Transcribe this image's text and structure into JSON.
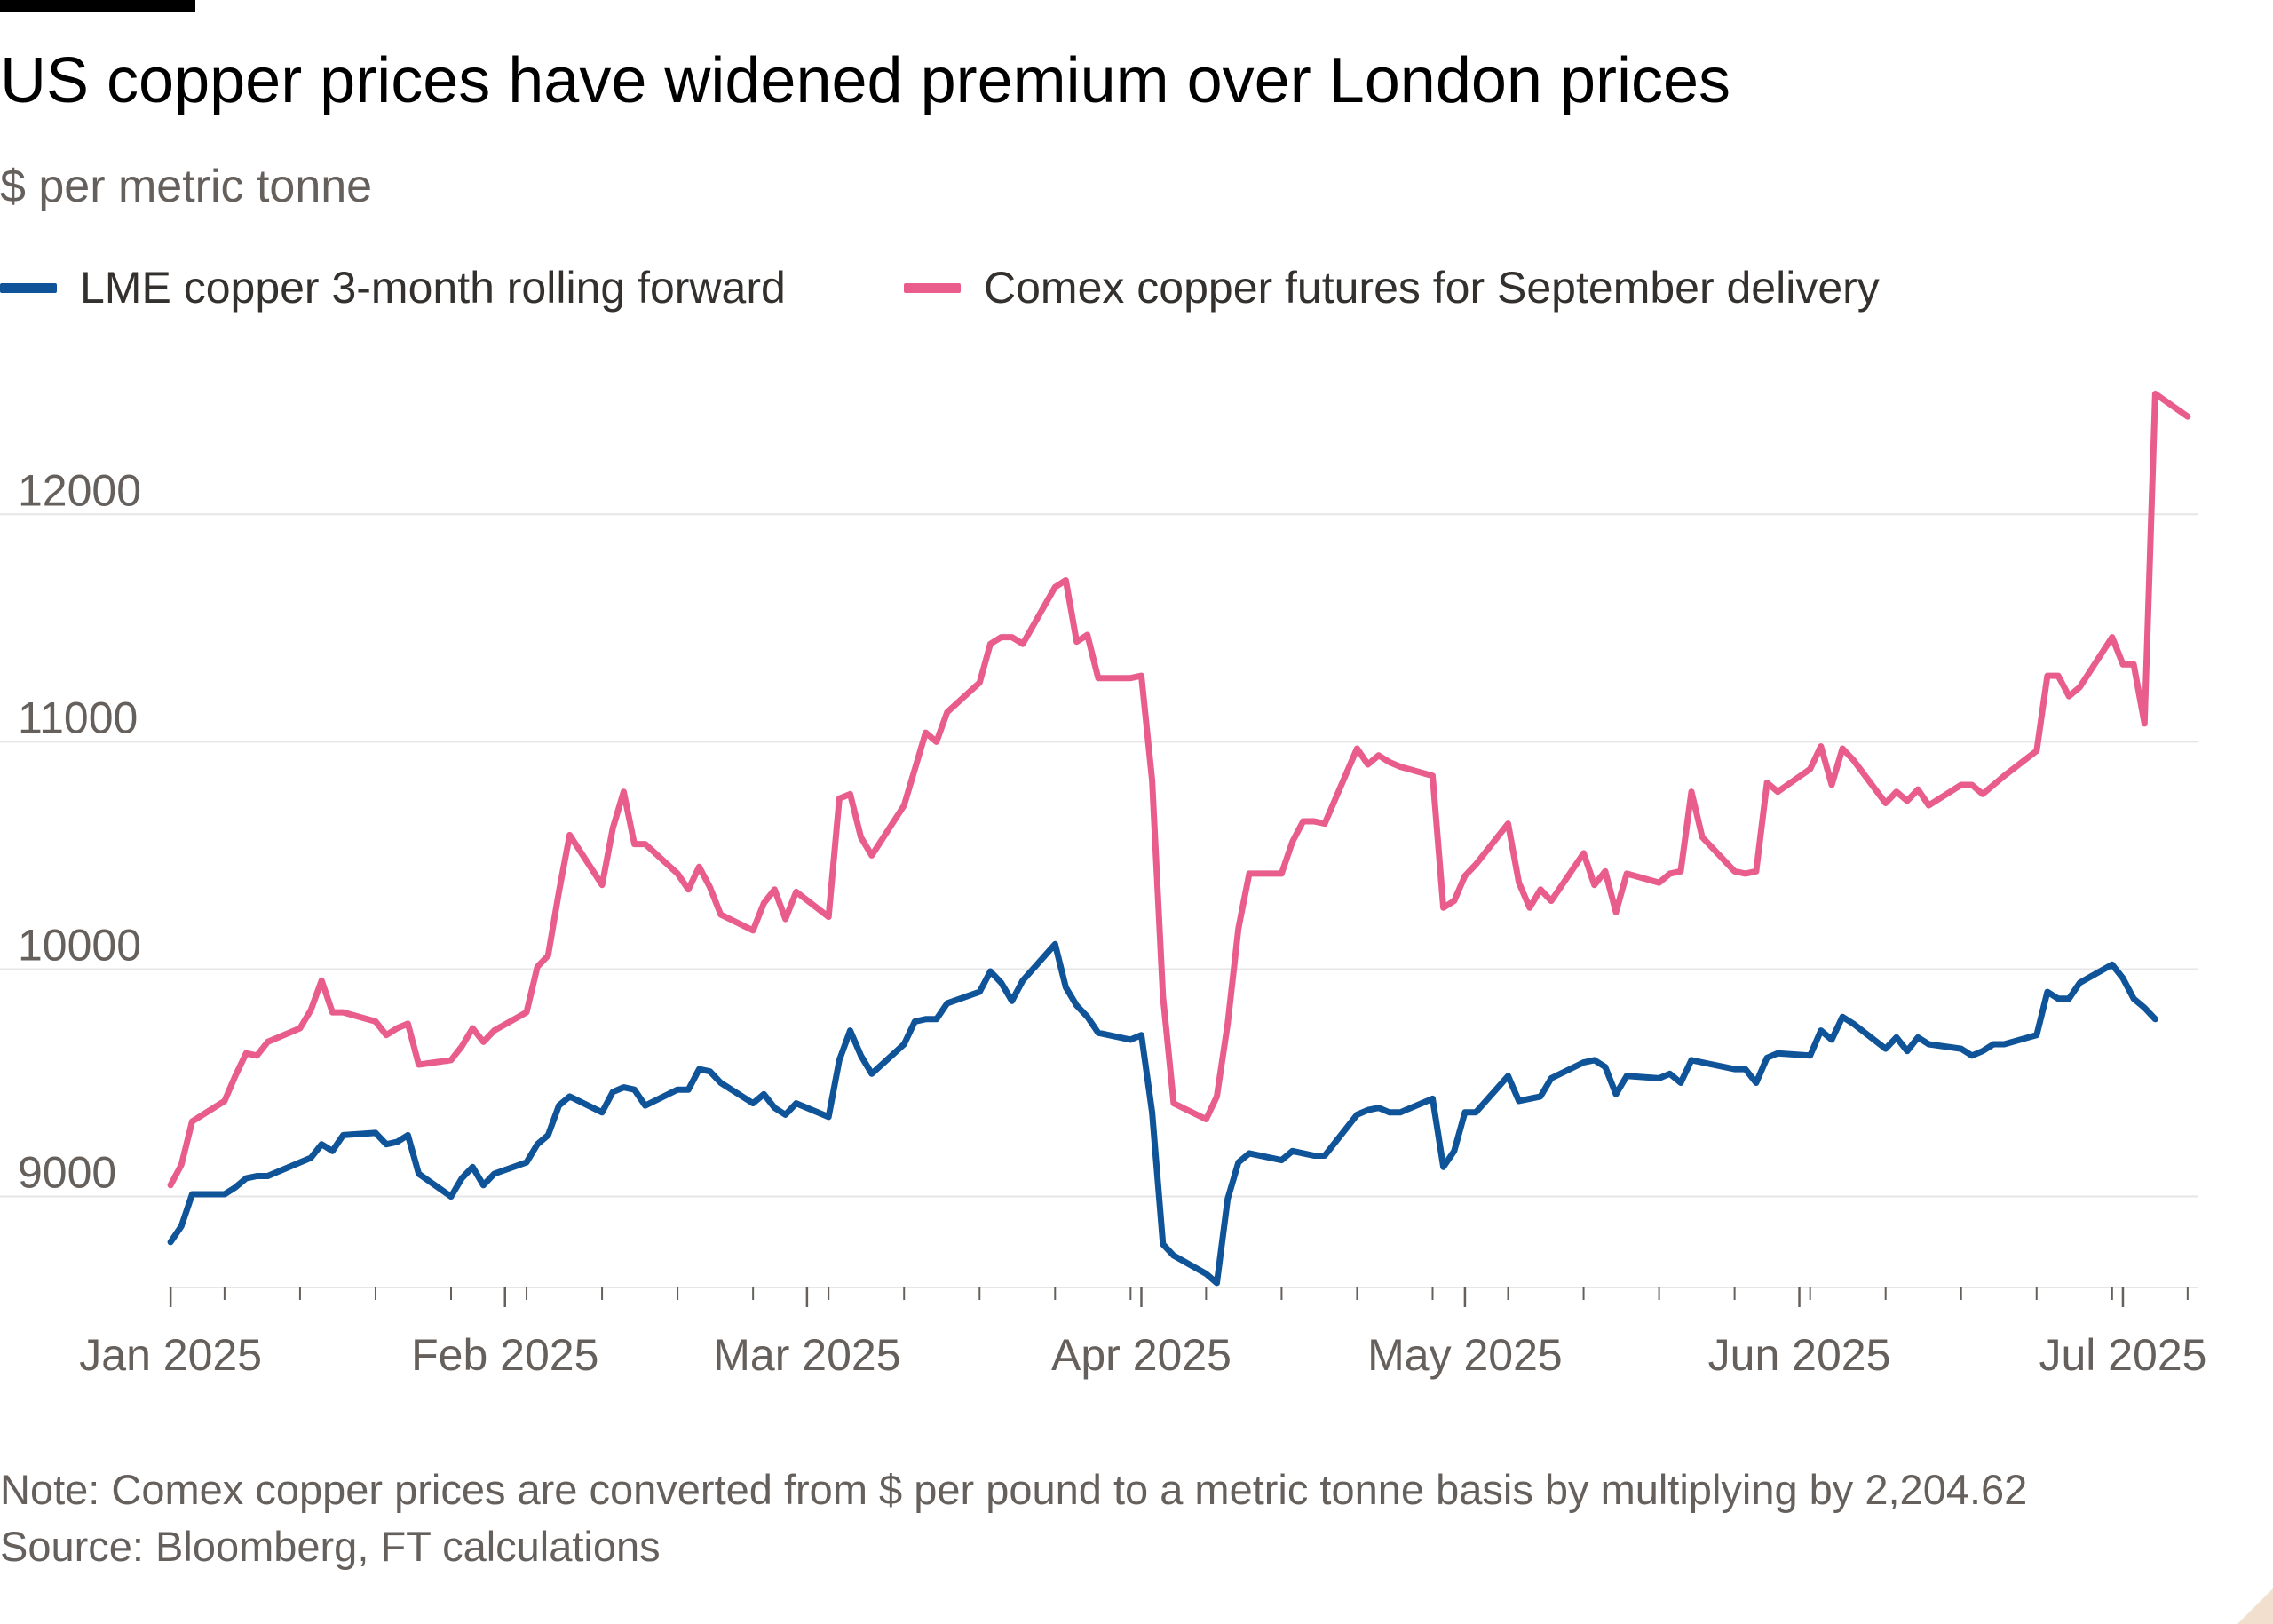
{
  "title": "US copper prices have widened premium over London prices",
  "subtitle": "$ per metric tonne",
  "footer": {
    "note": "Note: Comex copper prices are converted from $ per pound to a metric tonne basis by multiplying by 2,204.62",
    "source": "Source: Bloomberg, FT calculations"
  },
  "colors": {
    "lme": "#0f5499",
    "comex": "#e95d8c",
    "grid": "#e6e6e6",
    "axis": "#66605c"
  },
  "chart_data": {
    "type": "line",
    "x_axis": {
      "ticks": [
        {
          "date": "2025-01-01",
          "label": "Jan 2025"
        },
        {
          "date": "2025-02-01",
          "label": "Feb 2025"
        },
        {
          "date": "2025-03-01",
          "label": "Mar 2025"
        },
        {
          "date": "2025-04-01",
          "label": "Apr 2025"
        },
        {
          "date": "2025-05-01",
          "label": "May 2025"
        },
        {
          "date": "2025-06-01",
          "label": "Jun 2025"
        },
        {
          "date": "2025-07-01",
          "label": "Jul 2025"
        }
      ],
      "range": [
        "2024-12-31",
        "2025-07-08"
      ]
    },
    "y_axis": {
      "ticks": [
        9000,
        10000,
        11000,
        12000
      ],
      "range": [
        8600,
        12700
      ]
    },
    "grid": true,
    "legend_position": "top-left",
    "series": [
      {
        "name": "LME copper 3-month rolling forward",
        "color_key": "lme",
        "points": [
          [
            "2025-01-01",
            8800
          ],
          [
            "2025-01-02",
            8870
          ],
          [
            "2025-01-03",
            9010
          ],
          [
            "2025-01-06",
            9010
          ],
          [
            "2025-01-07",
            9040
          ],
          [
            "2025-01-08",
            9080
          ],
          [
            "2025-01-09",
            9090
          ],
          [
            "2025-01-10",
            9090
          ],
          [
            "2025-01-13",
            9150
          ],
          [
            "2025-01-14",
            9170
          ],
          [
            "2025-01-15",
            9230
          ],
          [
            "2025-01-16",
            9200
          ],
          [
            "2025-01-17",
            9270
          ],
          [
            "2025-01-20",
            9280
          ],
          [
            "2025-01-21",
            9230
          ],
          [
            "2025-01-22",
            9240
          ],
          [
            "2025-01-23",
            9270
          ],
          [
            "2025-01-24",
            9100
          ],
          [
            "2025-01-27",
            9000
          ],
          [
            "2025-01-28",
            9080
          ],
          [
            "2025-01-29",
            9130
          ],
          [
            "2025-01-30",
            9050
          ],
          [
            "2025-01-31",
            9100
          ],
          [
            "2025-02-03",
            9150
          ],
          [
            "2025-02-04",
            9230
          ],
          [
            "2025-02-05",
            9270
          ],
          [
            "2025-02-06",
            9400
          ],
          [
            "2025-02-07",
            9440
          ],
          [
            "2025-02-10",
            9370
          ],
          [
            "2025-02-11",
            9460
          ],
          [
            "2025-02-12",
            9480
          ],
          [
            "2025-02-13",
            9470
          ],
          [
            "2025-02-14",
            9400
          ],
          [
            "2025-02-17",
            9470
          ],
          [
            "2025-02-18",
            9470
          ],
          [
            "2025-02-19",
            9560
          ],
          [
            "2025-02-20",
            9550
          ],
          [
            "2025-02-21",
            9500
          ],
          [
            "2025-02-24",
            9410
          ],
          [
            "2025-02-25",
            9450
          ],
          [
            "2025-02-26",
            9390
          ],
          [
            "2025-02-27",
            9360
          ],
          [
            "2025-02-28",
            9410
          ],
          [
            "2025-03-03",
            9350
          ],
          [
            "2025-03-04",
            9600
          ],
          [
            "2025-03-05",
            9730
          ],
          [
            "2025-03-06",
            9620
          ],
          [
            "2025-03-07",
            9540
          ],
          [
            "2025-03-10",
            9670
          ],
          [
            "2025-03-11",
            9770
          ],
          [
            "2025-03-12",
            9780
          ],
          [
            "2025-03-13",
            9780
          ],
          [
            "2025-03-14",
            9850
          ],
          [
            "2025-03-17",
            9900
          ],
          [
            "2025-03-18",
            9990
          ],
          [
            "2025-03-19",
            9940
          ],
          [
            "2025-03-20",
            9860
          ],
          [
            "2025-03-21",
            9950
          ],
          [
            "2025-03-24",
            10110
          ],
          [
            "2025-03-25",
            9920
          ],
          [
            "2025-03-26",
            9840
          ],
          [
            "2025-03-27",
            9790
          ],
          [
            "2025-03-28",
            9720
          ],
          [
            "2025-03-31",
            9690
          ],
          [
            "2025-04-01",
            9710
          ],
          [
            "2025-04-02",
            9370
          ],
          [
            "2025-04-03",
            8790
          ],
          [
            "2025-04-04",
            8740
          ],
          [
            "2025-04-07",
            8660
          ],
          [
            "2025-04-08",
            8620
          ],
          [
            "2025-04-09",
            8990
          ],
          [
            "2025-04-10",
            9150
          ],
          [
            "2025-04-11",
            9190
          ],
          [
            "2025-04-14",
            9160
          ],
          [
            "2025-04-15",
            9200
          ],
          [
            "2025-04-16",
            9190
          ],
          [
            "2025-04-17",
            9180
          ],
          [
            "2025-04-18",
            9180
          ],
          [
            "2025-04-21",
            9360
          ],
          [
            "2025-04-22",
            9380
          ],
          [
            "2025-04-23",
            9390
          ],
          [
            "2025-04-24",
            9370
          ],
          [
            "2025-04-25",
            9370
          ],
          [
            "2025-04-28",
            9430
          ],
          [
            "2025-04-29",
            9130
          ],
          [
            "2025-04-30",
            9200
          ],
          [
            "2025-05-01",
            9370
          ],
          [
            "2025-05-02",
            9370
          ],
          [
            "2025-05-05",
            9530
          ],
          [
            "2025-05-06",
            9420
          ],
          [
            "2025-05-07",
            9430
          ],
          [
            "2025-05-08",
            9440
          ],
          [
            "2025-05-09",
            9520
          ],
          [
            "2025-05-12",
            9590
          ],
          [
            "2025-05-13",
            9600
          ],
          [
            "2025-05-14",
            9570
          ],
          [
            "2025-05-15",
            9450
          ],
          [
            "2025-05-16",
            9530
          ],
          [
            "2025-05-19",
            9520
          ],
          [
            "2025-05-20",
            9540
          ],
          [
            "2025-05-21",
            9500
          ],
          [
            "2025-05-22",
            9600
          ],
          [
            "2025-05-23",
            9590
          ],
          [
            "2025-05-26",
            9560
          ],
          [
            "2025-05-27",
            9560
          ],
          [
            "2025-05-28",
            9500
          ],
          [
            "2025-05-29",
            9610
          ],
          [
            "2025-05-30",
            9630
          ],
          [
            "2025-06-02",
            9620
          ],
          [
            "2025-06-03",
            9730
          ],
          [
            "2025-06-04",
            9690
          ],
          [
            "2025-06-05",
            9790
          ],
          [
            "2025-06-06",
            9760
          ],
          [
            "2025-06-09",
            9650
          ],
          [
            "2025-06-10",
            9700
          ],
          [
            "2025-06-11",
            9640
          ],
          [
            "2025-06-12",
            9700
          ],
          [
            "2025-06-13",
            9670
          ],
          [
            "2025-06-16",
            9650
          ],
          [
            "2025-06-17",
            9620
          ],
          [
            "2025-06-18",
            9640
          ],
          [
            "2025-06-19",
            9670
          ],
          [
            "2025-06-20",
            9670
          ],
          [
            "2025-06-23",
            9710
          ],
          [
            "2025-06-24",
            9900
          ],
          [
            "2025-06-25",
            9870
          ],
          [
            "2025-06-26",
            9870
          ],
          [
            "2025-06-27",
            9940
          ],
          [
            "2025-06-30",
            10020
          ],
          [
            "2025-07-01",
            9960
          ],
          [
            "2025-07-02",
            9870
          ],
          [
            "2025-07-03",
            9830
          ],
          [
            "2025-07-04",
            9780
          ]
        ]
      },
      {
        "name": "Comex copper futures for September delivery",
        "color_key": "comex",
        "points": [
          [
            "2025-01-01",
            9050
          ],
          [
            "2025-01-02",
            9140
          ],
          [
            "2025-01-03",
            9330
          ],
          [
            "2025-01-06",
            9420
          ],
          [
            "2025-01-07",
            9530
          ],
          [
            "2025-01-08",
            9630
          ],
          [
            "2025-01-09",
            9620
          ],
          [
            "2025-01-10",
            9680
          ],
          [
            "2025-01-13",
            9740
          ],
          [
            "2025-01-14",
            9820
          ],
          [
            "2025-01-15",
            9950
          ],
          [
            "2025-01-16",
            9810
          ],
          [
            "2025-01-17",
            9810
          ],
          [
            "2025-01-20",
            9770
          ],
          [
            "2025-01-21",
            9710
          ],
          [
            "2025-01-22",
            9740
          ],
          [
            "2025-01-23",
            9760
          ],
          [
            "2025-01-24",
            9580
          ],
          [
            "2025-01-27",
            9600
          ],
          [
            "2025-01-28",
            9660
          ],
          [
            "2025-01-29",
            9740
          ],
          [
            "2025-01-30",
            9680
          ],
          [
            "2025-01-31",
            9730
          ],
          [
            "2025-02-03",
            9810
          ],
          [
            "2025-02-04",
            10010
          ],
          [
            "2025-02-05",
            10060
          ],
          [
            "2025-02-06",
            10340
          ],
          [
            "2025-02-07",
            10590
          ],
          [
            "2025-02-10",
            10370
          ],
          [
            "2025-02-11",
            10620
          ],
          [
            "2025-02-12",
            10780
          ],
          [
            "2025-02-13",
            10550
          ],
          [
            "2025-02-14",
            10550
          ],
          [
            "2025-02-17",
            10420
          ],
          [
            "2025-02-18",
            10350
          ],
          [
            "2025-02-19",
            10450
          ],
          [
            "2025-02-20",
            10360
          ],
          [
            "2025-02-21",
            10240
          ],
          [
            "2025-02-24",
            10170
          ],
          [
            "2025-02-25",
            10290
          ],
          [
            "2025-02-26",
            10350
          ],
          [
            "2025-02-27",
            10220
          ],
          [
            "2025-02-28",
            10340
          ],
          [
            "2025-03-03",
            10230
          ],
          [
            "2025-03-04",
            10750
          ],
          [
            "2025-03-05",
            10770
          ],
          [
            "2025-03-06",
            10580
          ],
          [
            "2025-03-07",
            10500
          ],
          [
            "2025-03-10",
            10720
          ],
          [
            "2025-03-11",
            10880
          ],
          [
            "2025-03-12",
            11040
          ],
          [
            "2025-03-13",
            11000
          ],
          [
            "2025-03-14",
            11130
          ],
          [
            "2025-03-17",
            11260
          ],
          [
            "2025-03-18",
            11430
          ],
          [
            "2025-03-19",
            11460
          ],
          [
            "2025-03-20",
            11460
          ],
          [
            "2025-03-21",
            11430
          ],
          [
            "2025-03-24",
            11680
          ],
          [
            "2025-03-25",
            11710
          ],
          [
            "2025-03-26",
            11440
          ],
          [
            "2025-03-27",
            11470
          ],
          [
            "2025-03-28",
            11280
          ],
          [
            "2025-03-31",
            11280
          ],
          [
            "2025-04-01",
            11290
          ],
          [
            "2025-04-02",
            10830
          ],
          [
            "2025-04-03",
            9880
          ],
          [
            "2025-04-04",
            9410
          ],
          [
            "2025-04-07",
            9340
          ],
          [
            "2025-04-08",
            9440
          ],
          [
            "2025-04-09",
            9760
          ],
          [
            "2025-04-10",
            10180
          ],
          [
            "2025-04-11",
            10420
          ],
          [
            "2025-04-14",
            10420
          ],
          [
            "2025-04-15",
            10560
          ],
          [
            "2025-04-16",
            10650
          ],
          [
            "2025-04-17",
            10650
          ],
          [
            "2025-04-18",
            10640
          ],
          [
            "2025-04-21",
            10970
          ],
          [
            "2025-04-22",
            10900
          ],
          [
            "2025-04-23",
            10940
          ],
          [
            "2025-04-24",
            10910
          ],
          [
            "2025-04-25",
            10890
          ],
          [
            "2025-04-28",
            10850
          ],
          [
            "2025-04-29",
            10270
          ],
          [
            "2025-04-30",
            10300
          ],
          [
            "2025-05-01",
            10410
          ],
          [
            "2025-05-02",
            10460
          ],
          [
            "2025-05-05",
            10640
          ],
          [
            "2025-05-06",
            10380
          ],
          [
            "2025-05-07",
            10270
          ],
          [
            "2025-05-08",
            10350
          ],
          [
            "2025-05-09",
            10300
          ],
          [
            "2025-05-12",
            10510
          ],
          [
            "2025-05-13",
            10370
          ],
          [
            "2025-05-14",
            10430
          ],
          [
            "2025-05-15",
            10250
          ],
          [
            "2025-05-16",
            10420
          ],
          [
            "2025-05-19",
            10380
          ],
          [
            "2025-05-20",
            10420
          ],
          [
            "2025-05-21",
            10430
          ],
          [
            "2025-05-22",
            10780
          ],
          [
            "2025-05-23",
            10580
          ],
          [
            "2025-05-26",
            10430
          ],
          [
            "2025-05-27",
            10420
          ],
          [
            "2025-05-28",
            10430
          ],
          [
            "2025-05-29",
            10820
          ],
          [
            "2025-05-30",
            10780
          ],
          [
            "2025-06-02",
            10880
          ],
          [
            "2025-06-03",
            10980
          ],
          [
            "2025-06-04",
            10810
          ],
          [
            "2025-06-05",
            10970
          ],
          [
            "2025-06-06",
            10920
          ],
          [
            "2025-06-09",
            10730
          ],
          [
            "2025-06-10",
            10780
          ],
          [
            "2025-06-11",
            10740
          ],
          [
            "2025-06-12",
            10790
          ],
          [
            "2025-06-13",
            10720
          ],
          [
            "2025-06-16",
            10810
          ],
          [
            "2025-06-17",
            10810
          ],
          [
            "2025-06-18",
            10770
          ],
          [
            "2025-06-19",
            10810
          ],
          [
            "2025-06-20",
            10850
          ],
          [
            "2025-06-23",
            10960
          ],
          [
            "2025-06-24",
            11290
          ],
          [
            "2025-06-25",
            11290
          ],
          [
            "2025-06-26",
            11200
          ],
          [
            "2025-06-27",
            11240
          ],
          [
            "2025-06-30",
            11460
          ],
          [
            "2025-07-01",
            11340
          ],
          [
            "2025-07-02",
            11340
          ],
          [
            "2025-07-03",
            11080
          ],
          [
            "2025-07-04",
            12530
          ],
          [
            "2025-07-07",
            12430
          ]
        ]
      }
    ]
  }
}
